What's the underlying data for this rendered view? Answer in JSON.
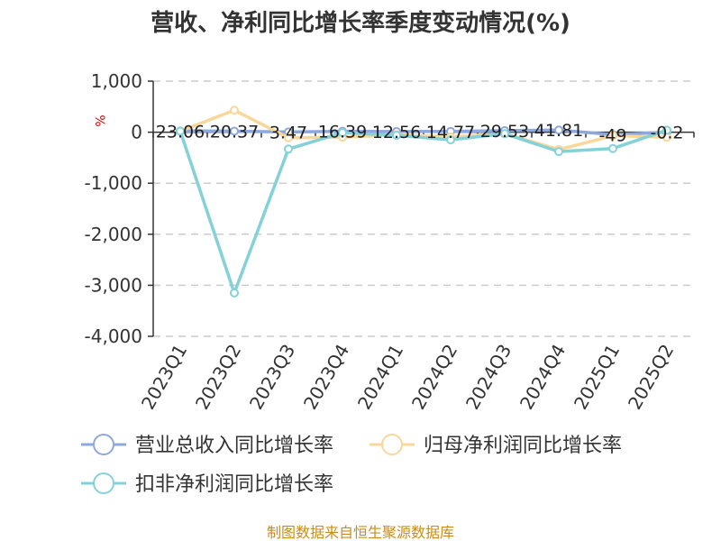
{
  "title": "营收、净利同比增长率季度变动情况(%)",
  "source": "制图数据来自恒生聚源数据库",
  "chart_data": {
    "type": "line",
    "title": "营收、净利同比增长率季度变动情况(%)",
    "ylabel": "%",
    "xlabel": "",
    "ylim": [
      -4000,
      1000
    ],
    "yticks": [
      1000,
      0,
      -1000,
      -2000,
      -3000,
      -4000
    ],
    "ytick_labels": [
      "1,000",
      "0",
      "-1,000",
      "-2,000",
      "-3,000",
      "-4,000"
    ],
    "grid": true,
    "legend_position": "bottom",
    "categories": [
      "2023Q1",
      "2023Q2",
      "2023Q3",
      "2023Q4",
      "2024Q1",
      "2024Q2",
      "2024Q3",
      "2024Q4",
      "2025Q1",
      "2025Q2"
    ],
    "series": [
      {
        "name": "营业总收入同比增长率",
        "color": "#8fa8dc",
        "values": [
          23.06,
          20.37,
          3.47,
          16.39,
          12.56,
          14.77,
          29.53,
          41.81,
          -49,
          -0.2
        ],
        "labels": [
          "23.06",
          "20.37",
          "3.47",
          "16.39",
          "12.56",
          "14.77",
          "29.53",
          "41.81",
          "-49",
          "-0.2"
        ]
      },
      {
        "name": "归母净利润同比增长率",
        "color": "#f8d79a",
        "values": [
          20,
          430,
          -110,
          -100,
          -50,
          -90,
          -30,
          -340,
          -70,
          -100
        ]
      },
      {
        "name": "扣非净利润同比增长率",
        "color": "#85d1d8",
        "values": [
          20,
          -3150,
          -330,
          -10,
          -60,
          -150,
          -30,
          -380,
          -320,
          40
        ]
      }
    ]
  }
}
